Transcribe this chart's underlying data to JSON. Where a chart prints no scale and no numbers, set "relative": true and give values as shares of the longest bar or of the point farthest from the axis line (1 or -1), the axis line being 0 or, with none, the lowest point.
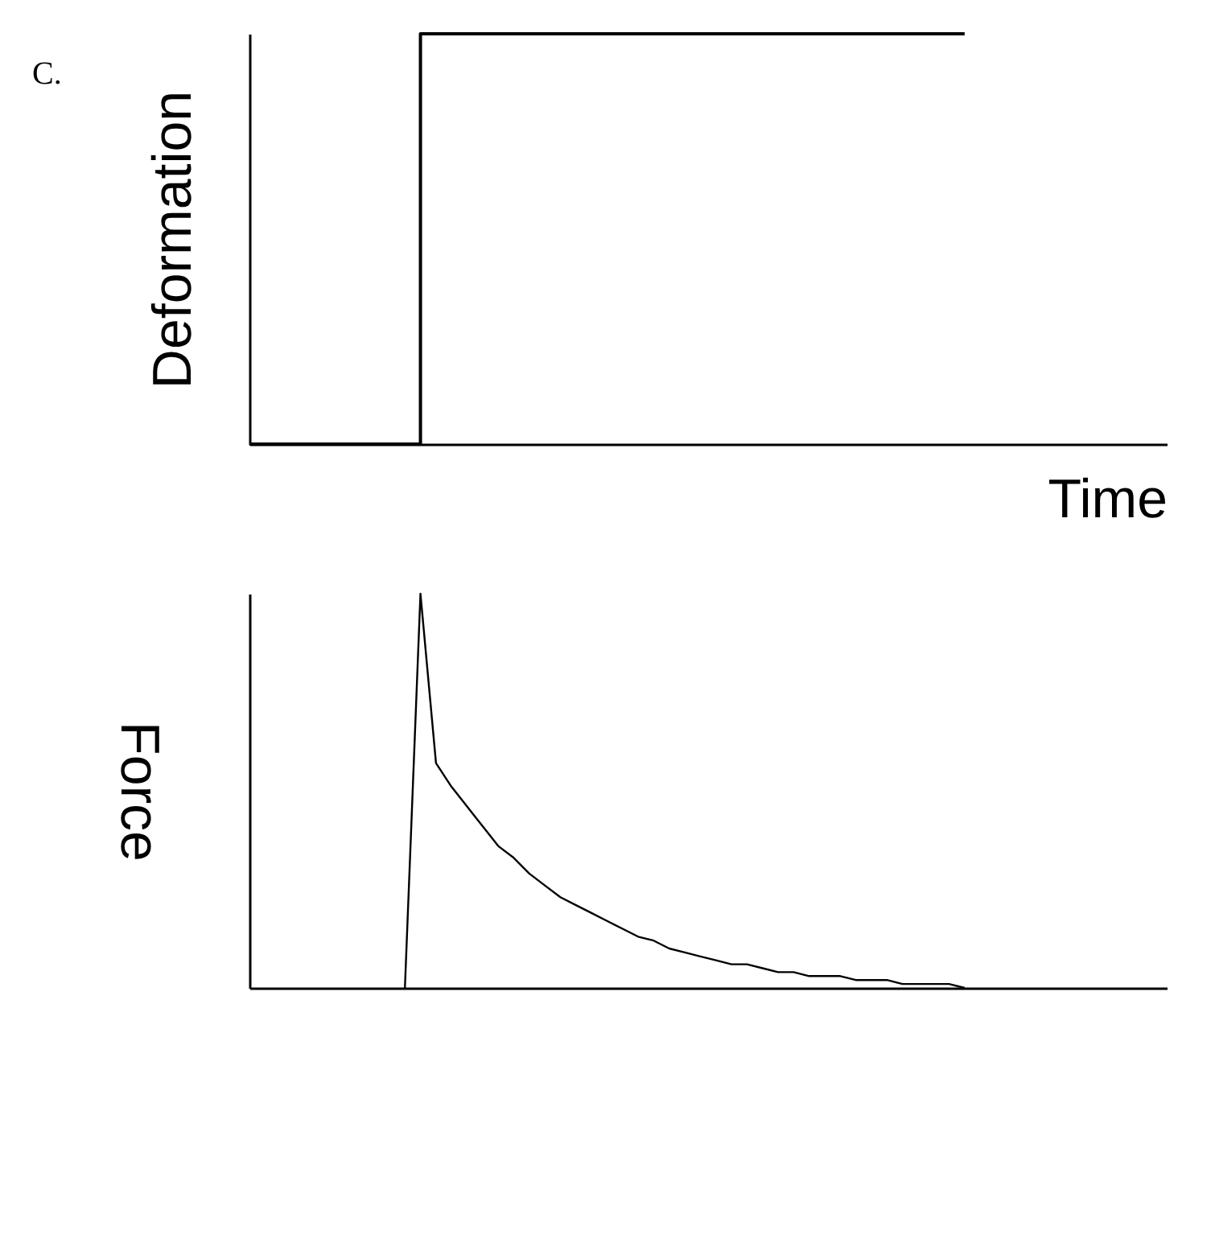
{
  "chart_data": [
    {
      "type": "step",
      "ylabel": "Deformation",
      "xlabel": "Time",
      "relative": true,
      "grid": false,
      "legend": false,
      "tick_labels": false,
      "annotations": [
        "C."
      ],
      "categories": [
        null,
        null,
        null,
        null,
        null,
        null,
        null,
        null,
        null,
        null,
        null,
        null,
        null,
        null,
        null,
        null,
        null,
        null,
        null,
        null,
        null,
        null,
        null,
        null,
        null,
        null,
        null,
        null,
        null,
        null,
        null,
        null,
        null,
        null,
        null,
        null,
        null,
        null,
        null,
        null,
        null,
        null,
        null,
        null,
        null,
        null,
        null,
        null,
        null,
        null,
        null,
        null,
        null,
        null,
        null,
        null,
        null,
        null,
        null,
        null
      ],
      "series": [
        {
          "color": "#000000",
          "values": [
            0,
            0,
            0,
            0,
            0,
            0,
            0,
            0,
            0,
            0,
            0,
            1,
            1,
            1,
            1,
            1,
            1,
            1,
            1,
            1,
            1,
            1,
            1,
            1,
            1,
            1,
            1,
            1,
            1,
            1,
            1,
            1,
            1,
            1,
            1,
            1,
            1,
            1,
            1,
            1,
            1,
            1,
            1,
            1,
            1,
            1,
            1,
            null,
            null,
            null,
            null,
            null,
            null,
            null,
            null,
            null,
            null,
            null,
            null,
            null
          ]
        }
      ]
    },
    {
      "type": "line",
      "ylabel": "Force",
      "relative": true,
      "grid": false,
      "legend": false,
      "tick_labels": false,
      "categories": [
        null,
        null,
        null,
        null,
        null,
        null,
        null,
        null,
        null,
        null,
        null,
        null,
        null,
        null,
        null,
        null,
        null,
        null,
        null,
        null,
        null,
        null,
        null,
        null,
        null,
        null,
        null,
        null,
        null,
        null,
        null,
        null,
        null,
        null,
        null,
        null,
        null,
        null,
        null,
        null,
        null,
        null,
        null,
        null,
        null,
        null,
        null,
        null,
        null,
        null,
        null,
        null,
        null,
        null,
        null,
        null,
        null,
        null,
        null,
        null
      ],
      "series": [
        {
          "color": "#000000",
          "values": [
            null,
            null,
            null,
            null,
            null,
            null,
            null,
            null,
            null,
            null,
            0,
            1,
            0.57,
            0.51,
            0.46,
            0.41,
            0.36,
            0.33,
            0.29,
            0.26,
            0.23,
            0.21,
            0.19,
            0.17,
            0.15,
            0.13,
            0.12,
            0.1,
            0.09,
            0.08,
            0.07,
            0.06,
            0.06,
            0.05,
            0.04,
            0.04,
            0.03,
            0.03,
            0.03,
            0.02,
            0.02,
            0.02,
            0.01,
            0.01,
            0.01,
            0.01,
            0,
            null,
            null,
            null,
            null,
            null,
            null,
            null,
            null,
            null,
            null,
            null,
            null,
            null
          ]
        }
      ]
    }
  ]
}
